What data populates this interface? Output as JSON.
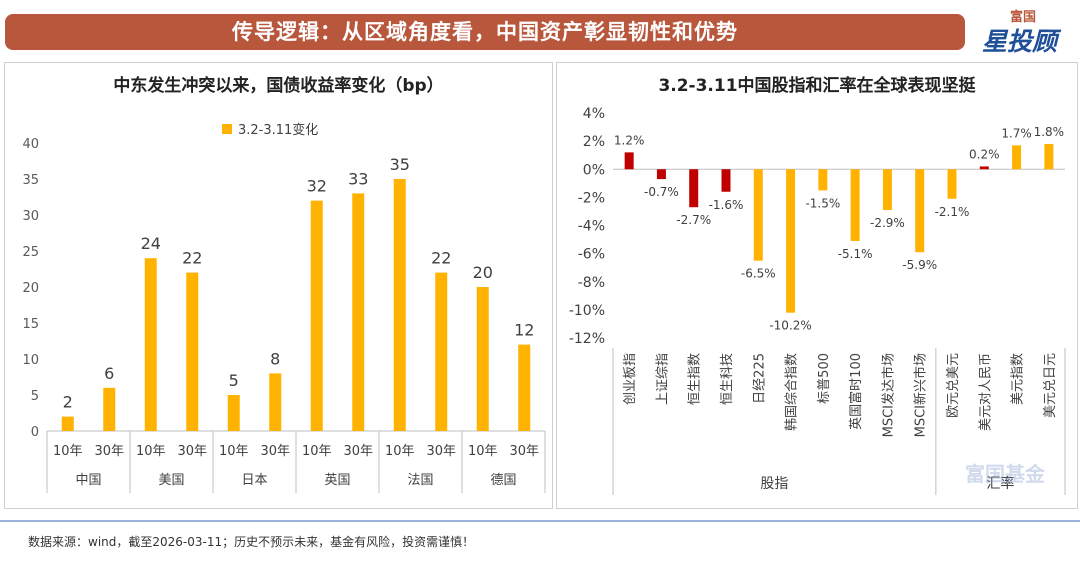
{
  "banner": {
    "title": "传导逻辑：从区域角度看，中国资产彰显韧性和优势"
  },
  "logo": {
    "top": "富国",
    "main": "星投顾"
  },
  "watermark": {
    "text": "富国基金"
  },
  "footer": {
    "text": "数据来源：wind，截至2026-03-11；历史不预示未来，基金有风险，投资需谨慎！"
  },
  "colors": {
    "bar_orange": "#ffb300",
    "bar_red": "#c00000",
    "banner": "#b9573d",
    "axis": "#bfbfbf"
  },
  "chart_data": [
    {
      "type": "bar",
      "title": "中东发生冲突以来，国债收益率变化（bp）",
      "legend": [
        "3.2-3.11变化"
      ],
      "legend_position": "top",
      "categories": [
        "10年",
        "30年",
        "10年",
        "30年",
        "10年",
        "30年",
        "10年",
        "30年",
        "10年",
        "30年",
        "10年",
        "30年"
      ],
      "groups": [
        "中国",
        "美国",
        "日本",
        "英国",
        "法国",
        "德国"
      ],
      "values": [
        2,
        6,
        24,
        22,
        5,
        8,
        32,
        33,
        35,
        22,
        20,
        12
      ],
      "yticks": [
        "0",
        "5",
        "10",
        "15",
        "20",
        "25",
        "30",
        "35",
        "40"
      ],
      "ylim": [
        0,
        40
      ],
      "grid": false
    },
    {
      "type": "bar",
      "title": "3.2-3.11中国股指和汇率在全球表现坚挺",
      "categories": [
        "创业板指",
        "上证综指",
        "恒生指数",
        "恒生科技",
        "日经225",
        "韩国综合指数",
        "标普500",
        "英国富时100",
        "MSCI发达市场",
        "MSCI新兴市场",
        "欧元兑美元",
        "美元对人民币",
        "美元指数",
        "美元兑日元"
      ],
      "values": [
        1.2,
        -0.7,
        -2.7,
        -1.6,
        -6.5,
        -10.2,
        -1.5,
        -5.1,
        -2.9,
        -5.9,
        -2.1,
        0.2,
        1.7,
        1.8
      ],
      "labels": [
        "1.2%",
        "-0.7%",
        "-2.7%",
        "-1.6%",
        "-6.5%",
        "-10.2%",
        "-1.5%",
        "-5.1%",
        "-2.9%",
        "-5.9%",
        "-2.1%",
        "0.2%",
        "1.7%",
        "1.8%"
      ],
      "colors": [
        "#c00000",
        "#c00000",
        "#c00000",
        "#c00000",
        "#ffb300",
        "#ffb300",
        "#ffb300",
        "#ffb300",
        "#ffb300",
        "#ffb300",
        "#ffb300",
        "#c00000",
        "#ffb300",
        "#ffb300"
      ],
      "groups": [
        "股指",
        "汇率"
      ],
      "yticks": [
        "4%",
        "2%",
        "0%",
        "-2%",
        "-4%",
        "-6%",
        "-8%",
        "-10%",
        "-12%"
      ],
      "ylim": [
        -12,
        4
      ],
      "grid": false
    }
  ]
}
